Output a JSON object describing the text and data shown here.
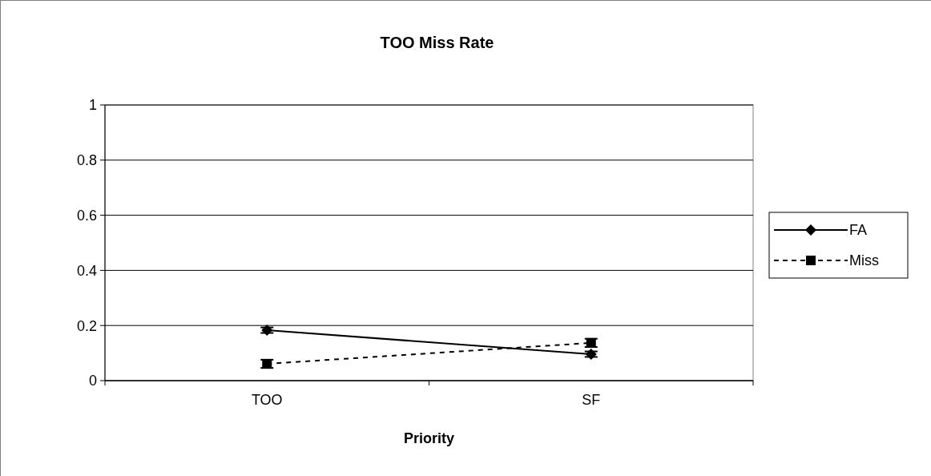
{
  "chart_data": {
    "type": "line",
    "title": "TOO Miss Rate",
    "xlabel": "Priority",
    "categories": [
      "TOO",
      "SF"
    ],
    "series": [
      {
        "name": "FA",
        "color": "#000000",
        "values": [
          0.183,
          0.096
        ],
        "errors": [
          0.01,
          0.01
        ],
        "marker": "diamond",
        "line_style": "solid"
      },
      {
        "name": "Miss",
        "color": "#000000",
        "values": [
          0.061,
          0.137
        ],
        "errors": [
          0.015,
          0.015
        ],
        "marker": "square",
        "line_style": "dashed"
      }
    ],
    "ylim": [
      0,
      1
    ],
    "yticks": [
      0,
      0.2,
      0.4,
      0.6,
      0.8,
      1
    ],
    "grid": "y",
    "legend": "right"
  }
}
